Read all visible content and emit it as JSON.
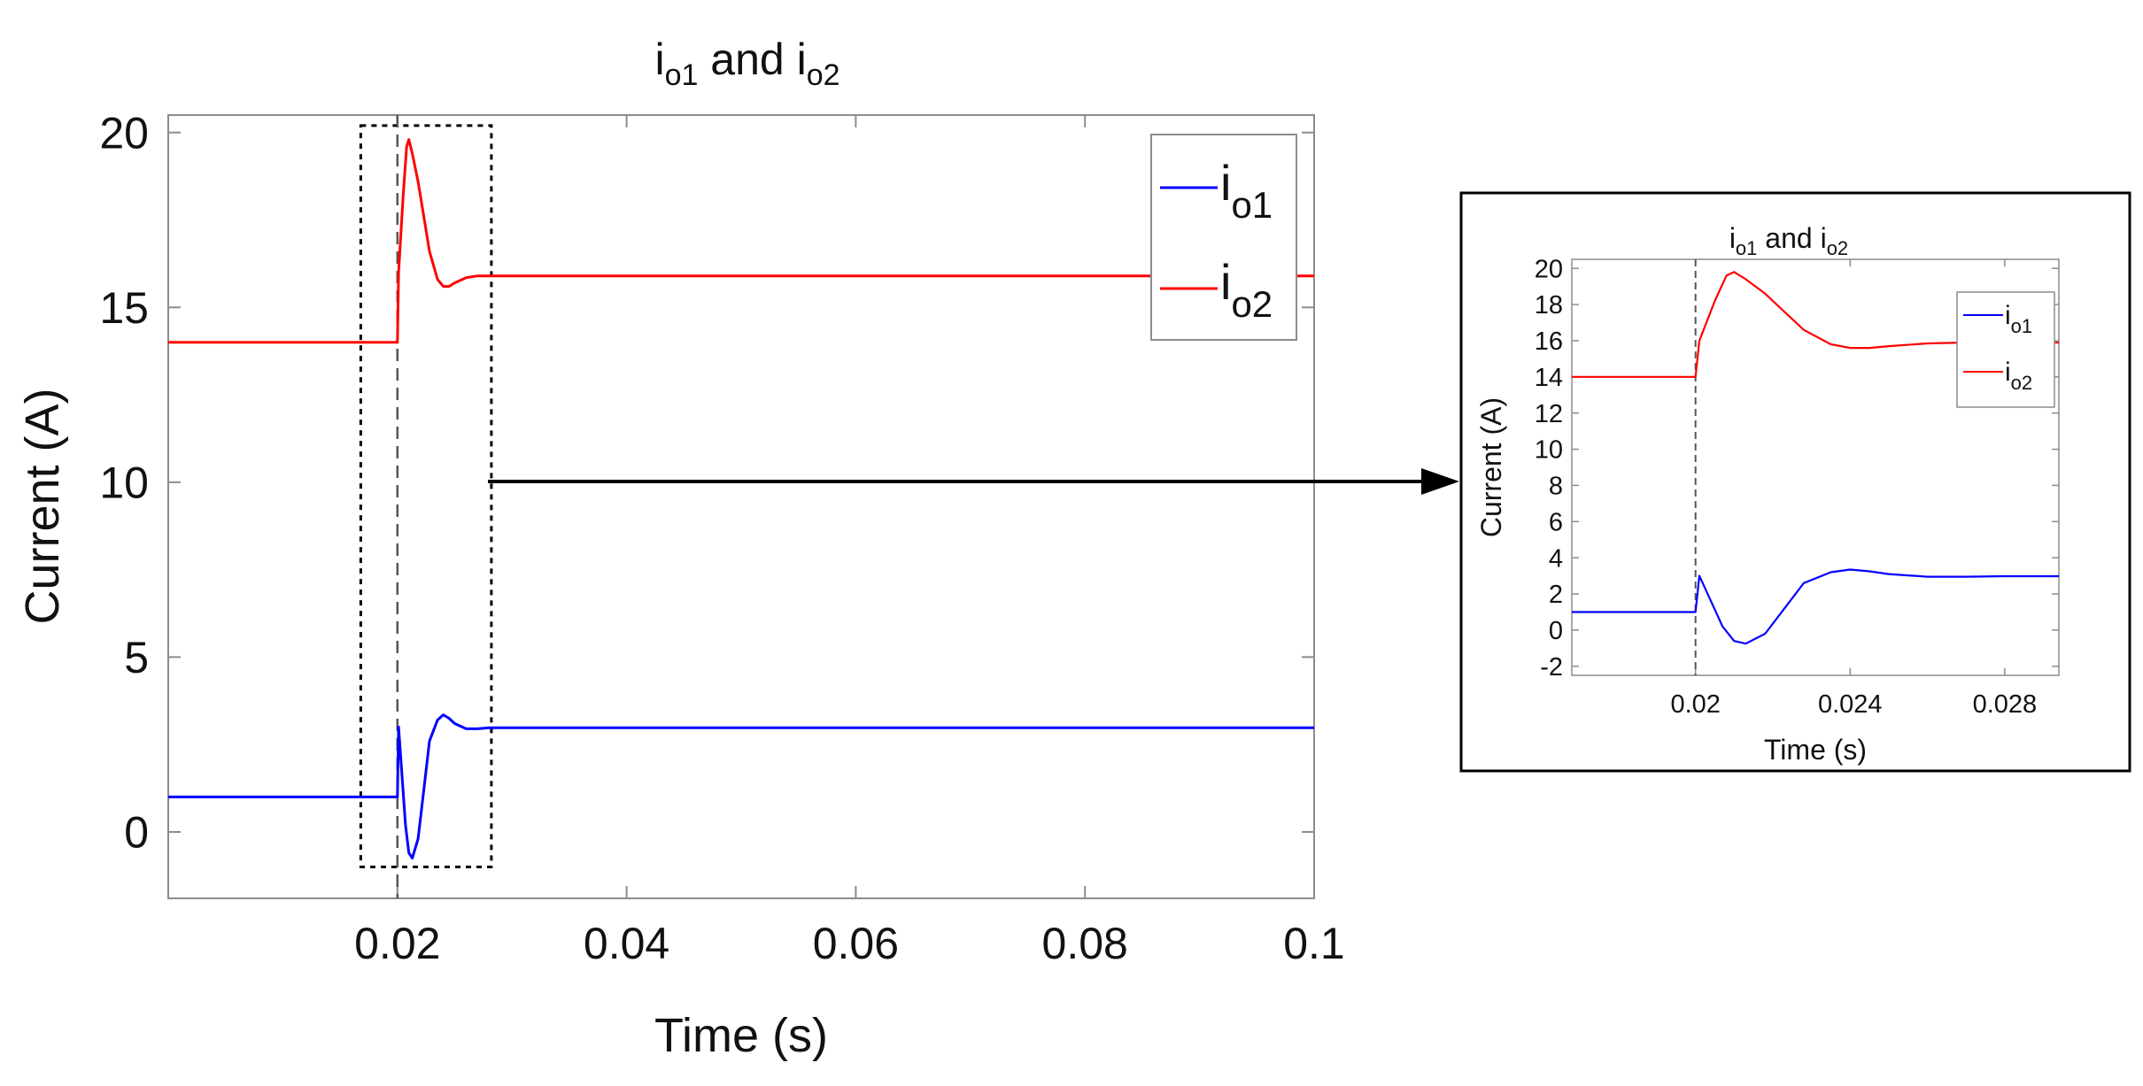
{
  "chart_data": [
    {
      "type": "line",
      "title": {
        "main": "i",
        "sub1": "o1",
        "joiner": " and ",
        "main2": "i",
        "sub2": "o2"
      },
      "xlabel": "Time (s)",
      "ylabel": "Current (A)",
      "xlim": [
        0.0,
        0.1
      ],
      "ylim": [
        -1.9,
        20.5
      ],
      "xticks": [
        0.02,
        0.04,
        0.06,
        0.08,
        0.1
      ],
      "xtick_labels": [
        "0.02",
        "0.04",
        "0.06",
        "0.08",
        "0.1"
      ],
      "yticks": [
        0,
        5,
        10,
        15,
        20
      ],
      "ytick_labels": [
        "0",
        "5",
        "10",
        "15",
        "20"
      ],
      "grid": false,
      "legend": "top-right",
      "event_line_x": 0.02,
      "zoom_box": {
        "x": [
          0.0168,
          0.0282
        ],
        "y": [
          -1.0,
          20.2
        ]
      },
      "series": [
        {
          "name": "i",
          "name_sub": "o1",
          "color": "#0000ff",
          "x": [
            0,
            0.02,
            0.0201,
            0.0204,
            0.0207,
            0.021,
            0.0213,
            0.0218,
            0.0223,
            0.0228,
            0.0235,
            0.024,
            0.0245,
            0.025,
            0.026,
            0.027,
            0.028,
            0.03,
            0.05,
            0.07,
            0.09,
            0.1
          ],
          "y": [
            1.0,
            1.0,
            3.0,
            1.6,
            0.2,
            -0.6,
            -0.75,
            -0.2,
            1.2,
            2.6,
            3.2,
            3.35,
            3.25,
            3.1,
            2.95,
            2.95,
            2.98,
            2.98,
            2.98,
            2.98,
            2.98,
            2.98
          ]
        },
        {
          "name": "i",
          "name_sub": "o2",
          "color": "#ff0000",
          "x": [
            0,
            0.02,
            0.0201,
            0.0205,
            0.0208,
            0.021,
            0.0213,
            0.0218,
            0.0223,
            0.0228,
            0.0235,
            0.024,
            0.0245,
            0.025,
            0.026,
            0.027,
            0.028,
            0.03,
            0.05,
            0.07,
            0.09,
            0.1
          ],
          "y": [
            14.0,
            14.0,
            16.0,
            18.2,
            19.6,
            19.8,
            19.4,
            18.6,
            17.6,
            16.6,
            15.8,
            15.6,
            15.6,
            15.7,
            15.85,
            15.9,
            15.9,
            15.9,
            15.9,
            15.9,
            15.9,
            15.9
          ]
        }
      ]
    },
    {
      "type": "line",
      "title": {
        "main": "i",
        "sub1": "o1",
        "joiner": " and ",
        "main2": "i",
        "sub2": "o2"
      },
      "xlabel": "Time (s)",
      "ylabel": "Current (A)",
      "xlim": [
        0.0168,
        0.0294
      ],
      "ylim": [
        -2.5,
        20.5
      ],
      "xticks": [
        0.02,
        0.024,
        0.028
      ],
      "xtick_labels": [
        "0.02",
        "0.024",
        "0.028"
      ],
      "yticks": [
        -2,
        0,
        2,
        4,
        6,
        8,
        10,
        12,
        14,
        16,
        18,
        20
      ],
      "ytick_labels": [
        "-2",
        "0",
        "2",
        "4",
        "6",
        "8",
        "10",
        "12",
        "14",
        "16",
        "18",
        "20"
      ],
      "grid": false,
      "legend": "top-right",
      "event_line_x": 0.02,
      "series": [
        {
          "name": "i",
          "name_sub": "o1",
          "color": "#0000ff",
          "x": [
            0.0168,
            0.02,
            0.0201,
            0.0204,
            0.0207,
            0.021,
            0.0213,
            0.0218,
            0.0223,
            0.0228,
            0.0235,
            0.024,
            0.0245,
            0.025,
            0.026,
            0.027,
            0.028,
            0.029,
            0.0294
          ],
          "y": [
            1.0,
            1.0,
            3.0,
            1.6,
            0.2,
            -0.6,
            -0.75,
            -0.2,
            1.2,
            2.6,
            3.2,
            3.35,
            3.25,
            3.1,
            2.95,
            2.95,
            2.98,
            2.98,
            2.98
          ]
        },
        {
          "name": "i",
          "name_sub": "o2",
          "color": "#ff0000",
          "x": [
            0.0168,
            0.02,
            0.0201,
            0.0205,
            0.0208,
            0.021,
            0.0213,
            0.0218,
            0.0223,
            0.0228,
            0.0235,
            0.024,
            0.0245,
            0.025,
            0.026,
            0.027,
            0.028,
            0.029,
            0.0294
          ],
          "y": [
            14.0,
            14.0,
            16.0,
            18.2,
            19.6,
            19.8,
            19.4,
            18.6,
            17.6,
            16.6,
            15.8,
            15.6,
            15.6,
            15.7,
            15.85,
            15.9,
            15.9,
            15.9,
            15.9
          ]
        }
      ]
    }
  ]
}
